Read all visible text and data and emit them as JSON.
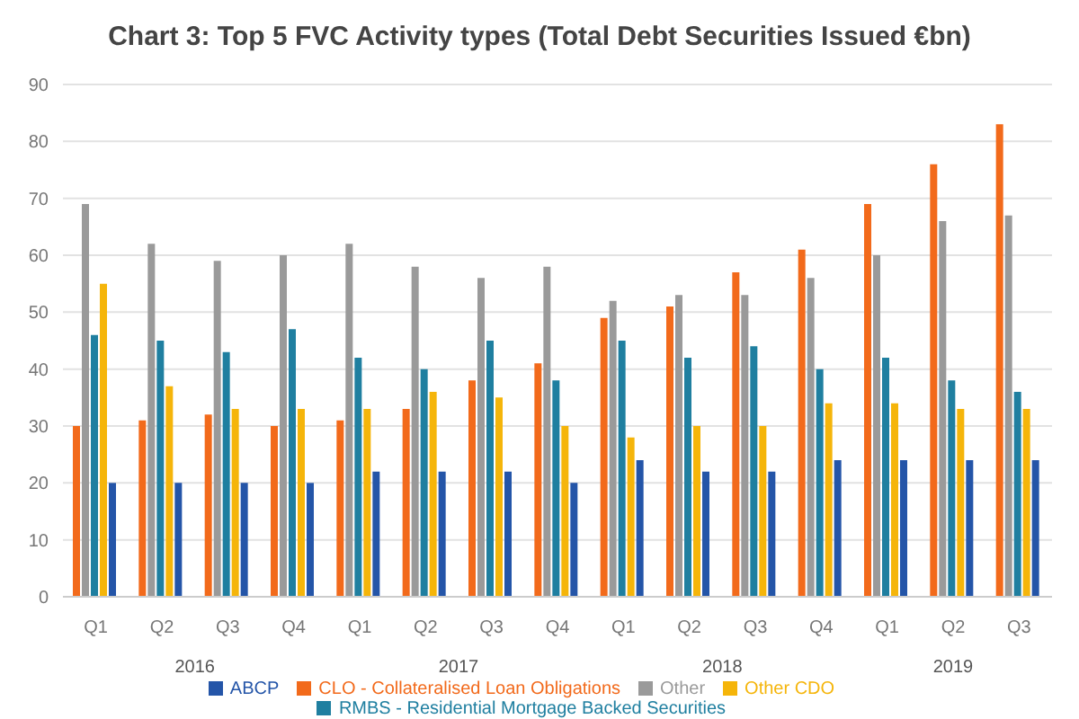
{
  "chart_data": {
    "type": "bar",
    "title": "Chart 3: Top 5 FVC Activity types (Total Debt Securities Issued €bn)",
    "categories": [
      "Q1",
      "Q2",
      "Q3",
      "Q4",
      "Q1",
      "Q2",
      "Q3",
      "Q4",
      "Q1",
      "Q2",
      "Q3",
      "Q4",
      "Q1",
      "Q2",
      "Q3"
    ],
    "annotations": [
      "2016",
      "2017",
      "2018",
      "2019"
    ],
    "series": [
      {
        "name": "CLO - Collateralised Loan Obligations",
        "color": "#f26a1b",
        "values": [
          30,
          31,
          32,
          30,
          31,
          33,
          38,
          41,
          49,
          51,
          57,
          61,
          69,
          76,
          83
        ]
      },
      {
        "name": "Other",
        "color": "#9a9a9a",
        "values": [
          69,
          62,
          59,
          60,
          62,
          58,
          56,
          58,
          52,
          53,
          53,
          56,
          60,
          66,
          67
        ]
      },
      {
        "name": "RMBS - Residential Mortgage Backed Securities",
        "color": "#1f7fa0",
        "values": [
          46,
          45,
          43,
          47,
          42,
          40,
          45,
          38,
          45,
          42,
          44,
          40,
          42,
          38,
          36
        ]
      },
      {
        "name": "Other CDO",
        "color": "#f5b50a",
        "values": [
          55,
          37,
          33,
          33,
          33,
          36,
          35,
          30,
          28,
          30,
          30,
          34,
          34,
          33,
          33
        ]
      },
      {
        "name": "ABCP",
        "color": "#2455a8",
        "values": [
          20,
          20,
          20,
          20,
          22,
          22,
          22,
          20,
          24,
          22,
          22,
          24,
          24,
          24,
          24
        ]
      }
    ],
    "ylim": [
      0,
      90
    ],
    "yticks": [
      0,
      10,
      20,
      30,
      40,
      50,
      60,
      70,
      80,
      90
    ],
    "grid": "y",
    "legend": "bottom"
  }
}
